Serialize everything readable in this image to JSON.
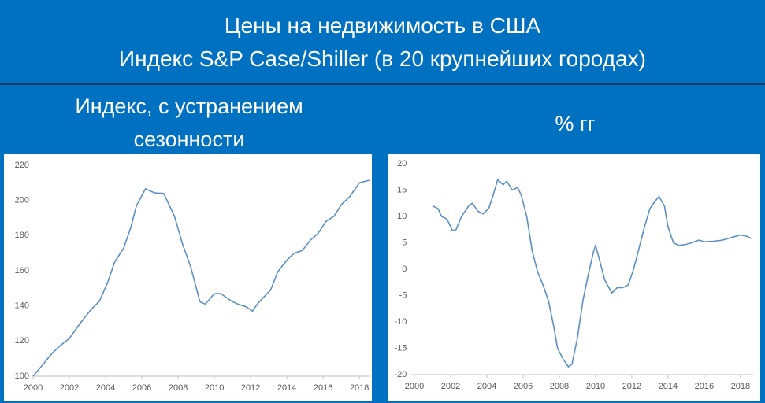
{
  "title": [
    "Цены на недвижимость в США",
    "Индекс S&P Case/Shiller (в 20 крупнейших городах)"
  ],
  "chart_data": [
    {
      "type": "line",
      "title": "Индекс, с устранением сезонности",
      "xlim": [
        2000,
        2018.6
      ],
      "xticks": [
        2000,
        2002,
        2004,
        2006,
        2008,
        2010,
        2012,
        2014,
        2016,
        2018
      ],
      "ylim": [
        100,
        220
      ],
      "yticks": [
        100,
        120,
        140,
        160,
        180,
        200,
        220
      ],
      "x": [
        2000,
        2000.57,
        2001,
        2001.45,
        2002,
        2002.55,
        2003.2,
        2003.65,
        2004.1,
        2004.5,
        2005,
        2005.4,
        2005.7,
        2006.2,
        2006.7,
        2007.2,
        2007.8,
        2008.25,
        2008.7,
        2009.2,
        2009.5,
        2010,
        2010.35,
        2010.9,
        2011.3,
        2011.75,
        2012.1,
        2012.4,
        2013.1,
        2013.5,
        2014,
        2014.4,
        2014.85,
        2015.3,
        2015.7,
        2016.15,
        2016.6,
        2017,
        2017.45,
        2018,
        2018.55
      ],
      "series": [
        {
          "color": "#5b8fc7",
          "values": [
            100,
            107,
            112.5,
            117,
            121.5,
            129.5,
            138,
            142.5,
            153,
            165,
            173,
            185,
            197,
            206.6,
            204.3,
            204,
            191,
            175,
            162,
            142.5,
            141,
            147,
            147,
            143,
            141,
            139.5,
            137,
            141.5,
            149,
            159.5,
            166,
            170,
            171.5,
            177.5,
            181,
            188,
            191,
            197.6,
            202,
            210,
            211.5
          ]
        }
      ]
    },
    {
      "type": "line",
      "title": "% гг",
      "xlim": [
        1999.8,
        2018.7
      ],
      "xticks": [
        2000,
        2002,
        2004,
        2006,
        2008,
        2010,
        2012,
        2014,
        2016,
        2018
      ],
      "ylim": [
        -20,
        20
      ],
      "yticks": [
        -20,
        -15,
        -10,
        -5,
        0,
        5,
        10,
        15,
        20
      ],
      "x": [
        2001.0,
        2001.3,
        2001.5,
        2001.8,
        2002.1,
        2002.3,
        2002.6,
        2003.0,
        2003.2,
        2003.5,
        2003.8,
        2004.1,
        2004.3,
        2004.6,
        2004.9,
        2005.1,
        2005.4,
        2005.7,
        2005.9,
        2006.2,
        2006.5,
        2006.8,
        2007.1,
        2007.4,
        2007.7,
        2007.9,
        2008.2,
        2008.5,
        2008.7,
        2009.0,
        2009.3,
        2009.6,
        2009.9,
        2010.0,
        2010.2,
        2010.5,
        2010.9,
        2011.2,
        2011.5,
        2011.8,
        2012.1,
        2012.4,
        2012.7,
        2013.0,
        2013.2,
        2013.5,
        2013.8,
        2014.0,
        2014.3,
        2014.6,
        2015.0,
        2015.3,
        2015.7,
        2016.0,
        2016.5,
        2017.0,
        2017.5,
        2018.0,
        2018.4,
        2018.6
      ],
      "series": [
        {
          "color": "#5b8fc7",
          "values": [
            12,
            11.5,
            10,
            9.5,
            7.3,
            7.5,
            10,
            12,
            12.5,
            11,
            10.5,
            11.5,
            13.5,
            17,
            16,
            16.7,
            15,
            15.5,
            14,
            10,
            3.5,
            -0.5,
            -3,
            -6,
            -11,
            -15,
            -17,
            -18.5,
            -18,
            -13,
            -6,
            -1,
            3.5,
            4.5,
            2,
            -2,
            -4.5,
            -3.5,
            -3.5,
            -3,
            0,
            4,
            8,
            11.5,
            12.5,
            13.8,
            12,
            8,
            5,
            4.5,
            4.7,
            5,
            5.5,
            5.2,
            5.3,
            5.5,
            6,
            6.5,
            6.2,
            5.8
          ]
        }
      ]
    }
  ]
}
